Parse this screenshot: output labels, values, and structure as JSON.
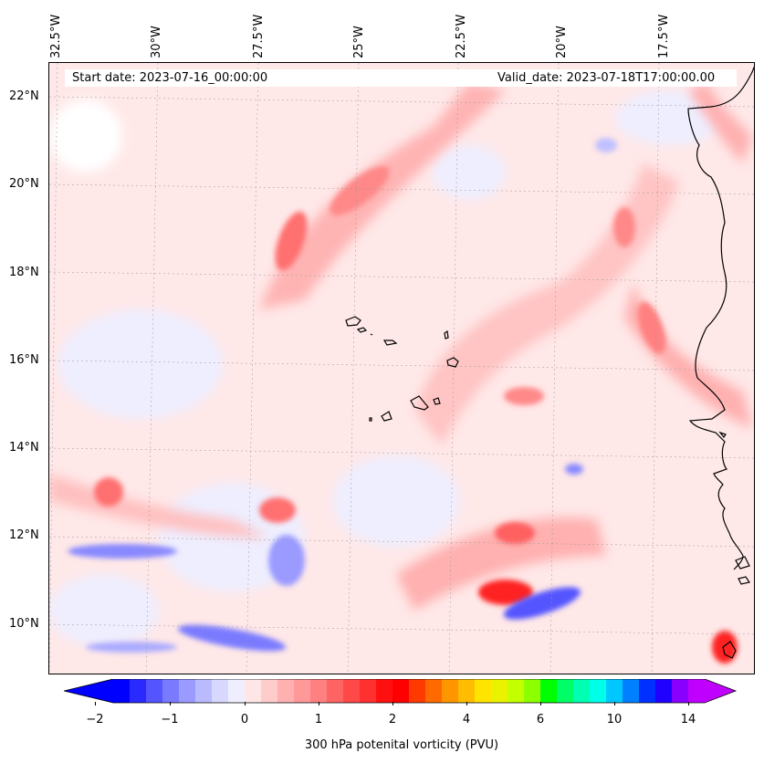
{
  "map": {
    "header": {
      "start_date": "Start date: 2023-07-16_00:00:00",
      "valid_date": "Valid_date: 2023-07-18T17:00:00.00"
    },
    "latitude_labels": [
      "22°N",
      "20°N",
      "18°N",
      "16°N",
      "14°N",
      "12°N",
      "10°N"
    ],
    "longitude_labels": [
      "32.5°W",
      "30°W",
      "27.5°W",
      "25°W",
      "22.5°W",
      "20°W",
      "17.5°W"
    ],
    "region": "Tropical East Atlantic, Cape Verde Islands and West African coast",
    "features": [
      "Cape Verde Islands",
      "West African coastline"
    ]
  },
  "colorbar": {
    "label": "300 hPa potenital vorticity (PVU)",
    "tick_labels": [
      "−2",
      "−1",
      "0",
      "1",
      "2",
      "4",
      "6",
      "10",
      "14"
    ],
    "colors": [
      "#0000ff",
      "#2a2aff",
      "#5555ff",
      "#7a7aff",
      "#9a9aff",
      "#babaff",
      "#d8d8ff",
      "#eeeeff",
      "#ffe6e6",
      "#ffcccc",
      "#ffb0b0",
      "#ff9898",
      "#ff8080",
      "#ff6464",
      "#ff4848",
      "#ff3030",
      "#ff1010",
      "#ff0000",
      "#ff3a00",
      "#ff6a00",
      "#ff9600",
      "#ffbc00",
      "#ffe400",
      "#eaf200",
      "#c4ff00",
      "#8cff00",
      "#00ff00",
      "#00ff66",
      "#00ffb0",
      "#00ffe8",
      "#00c8ff",
      "#0080ff",
      "#0030ff",
      "#2000ff",
      "#8a00ff",
      "#c000ff"
    ]
  }
}
